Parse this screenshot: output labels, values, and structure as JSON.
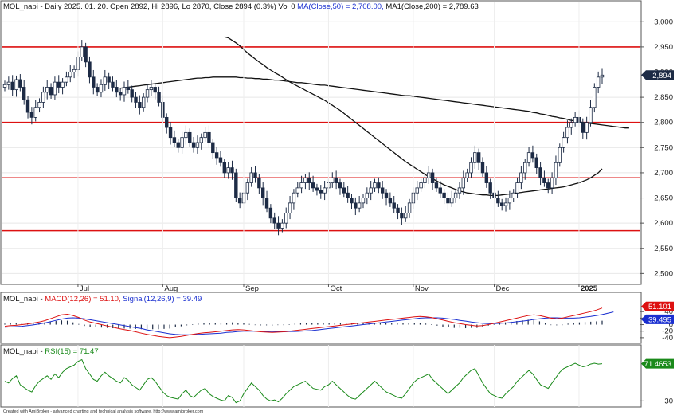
{
  "panels": {
    "price": {
      "title_prefix": "MOL_napi - Daily 2025. 01. 20. Open 2892, Hi 2896, Lo 2870, Close 2894 (0.3%) Vol 0",
      "ma50_label": "MA(Close,50) = 2,708.00,",
      "ma200_label": "MA1(Close,200) = 2,789.63",
      "last_badge": "2,894"
    },
    "macd": {
      "prefix": "MOL_napi - ",
      "macd_label": "MACD(12,26) = 51.10,",
      "signal_label": "Signal(12,26,9) = 39.49",
      "macd_badge": "51.101",
      "signal_badge": "39.495"
    },
    "rsi": {
      "prefix": "MOL_napi - ",
      "rsi_label": "RSI(15) = 71.47",
      "rsi_badge": "71.4653"
    }
  },
  "footer": "Created with AmiBroker - advanced charting and technical analysis software. http://www.amibroker.com",
  "colors": {
    "candle": "#1d2b45",
    "ma50": "#111111",
    "hline": "#dd1111",
    "macd": "#dd1111",
    "signal": "#1a2fd0",
    "histogram": "#1d2b45",
    "rsi": "#1a8a1a",
    "badge_price": "#1d2b45",
    "badge_macd": "#dd1111",
    "badge_signal": "#1a2fd0",
    "badge_rsi": "#1a8a1a"
  },
  "chart_data": [
    {
      "type": "candlestick",
      "title": "MOL_napi - Daily 2025. 01. 20. Open 2892, Hi 2896, Lo 2870, Close 2894 (0.3%) Vol 0",
      "x_tick_labels": [
        "Jul",
        "Aug",
        "Sep",
        "Oct",
        "Nov",
        "Dec",
        "2025"
      ],
      "x_tick_bar_index": [
        19,
        41,
        62,
        84,
        106,
        127,
        149
      ],
      "y_ticks": [
        2500,
        2550,
        2600,
        2650,
        2700,
        2750,
        2800,
        2850,
        2900,
        2950,
        3000
      ],
      "y_tick_labels": [
        "2,500",
        "2,550",
        "2,600",
        "2,650",
        "2,700",
        "2,750",
        "2,800",
        "2,850",
        "2,900",
        "2,950",
        "3,000"
      ],
      "ylim": [
        2480,
        3040
      ],
      "horizontal_levels": [
        2950,
        2800,
        2690,
        2585
      ],
      "closes": [
        2875,
        2880,
        2865,
        2885,
        2870,
        2845,
        2820,
        2810,
        2830,
        2840,
        2860,
        2870,
        2855,
        2880,
        2870,
        2880,
        2890,
        2900,
        2905,
        2930,
        2950,
        2920,
        2890,
        2870,
        2860,
        2875,
        2890,
        2880,
        2870,
        2860,
        2855,
        2870,
        2865,
        2850,
        2840,
        2830,
        2850,
        2865,
        2870,
        2860,
        2840,
        2810,
        2790,
        2770,
        2760,
        2750,
        2770,
        2780,
        2760,
        2750,
        2760,
        2770,
        2780,
        2760,
        2740,
        2730,
        2720,
        2700,
        2710,
        2700,
        2650,
        2640,
        2660,
        2680,
        2700,
        2690,
        2670,
        2650,
        2630,
        2610,
        2600,
        2590,
        2600,
        2620,
        2640,
        2660,
        2670,
        2680,
        2690,
        2680,
        2670,
        2665,
        2660,
        2670,
        2680,
        2690,
        2680,
        2670,
        2660,
        2650,
        2640,
        2630,
        2640,
        2650,
        2660,
        2670,
        2680,
        2670,
        2660,
        2650,
        2640,
        2630,
        2620,
        2610,
        2620,
        2640,
        2660,
        2670,
        2680,
        2690,
        2700,
        2680,
        2670,
        2660,
        2650,
        2640,
        2650,
        2660,
        2670,
        2690,
        2700,
        2720,
        2740,
        2720,
        2700,
        2680,
        2660,
        2650,
        2640,
        2635,
        2640,
        2650,
        2660,
        2680,
        2700,
        2720,
        2740,
        2730,
        2710,
        2690,
        2680,
        2670,
        2690,
        2720,
        2750,
        2770,
        2790,
        2800,
        2810,
        2800,
        2780,
        2800,
        2830,
        2870,
        2890,
        2894
      ],
      "ma200": [
        2868,
        2869,
        2870,
        2871,
        2872,
        2873,
        2874,
        2875,
        2876,
        2877,
        2878,
        2879,
        2880,
        2881,
        2882,
        2883,
        2884,
        2885,
        2886,
        2887,
        2888,
        2888,
        2889,
        2889,
        2890,
        2890,
        2890,
        2890,
        2890,
        2890,
        2890,
        2889,
        2889,
        2888,
        2888,
        2887,
        2887,
        2886,
        2886,
        2885,
        2884,
        2884,
        2883,
        2882,
        2881,
        2880,
        2879,
        2879,
        2878,
        2877,
        2876,
        2875,
        2874,
        2874,
        2873,
        2872,
        2871,
        2870,
        2869,
        2868,
        2867,
        2866,
        2865,
        2864,
        2863,
        2862,
        2861,
        2860,
        2859,
        2858,
        2857,
        2856,
        2855,
        2854,
        2853,
        2853,
        2852,
        2851,
        2850,
        2849,
        2848,
        2847,
        2846,
        2845,
        2844,
        2843,
        2842,
        2841,
        2840,
        2839,
        2838,
        2837,
        2836,
        2835,
        2834,
        2833,
        2832,
        2831,
        2830,
        2829,
        2828,
        2827,
        2826,
        2825,
        2824,
        2823,
        2822,
        2820,
        2819,
        2817,
        2816,
        2814,
        2812,
        2811,
        2809,
        2808,
        2806,
        2804,
        2803,
        2801,
        2800,
        2799,
        2798,
        2797,
        2796,
        2795,
        2794,
        2793,
        2792,
        2791,
        2790,
        2789,
        2789
      ],
      "ma200_start_bar": 30,
      "ma50": [
        2970,
        2968,
        2963,
        2958,
        2952,
        2945,
        2938,
        2932,
        2926,
        2920,
        2915,
        2909,
        2904,
        2899,
        2895,
        2890,
        2885,
        2880,
        2876,
        2872,
        2868,
        2864,
        2860,
        2856,
        2852,
        2848,
        2844,
        2839,
        2834,
        2829,
        2824,
        2818,
        2812,
        2806,
        2800,
        2794,
        2788,
        2782,
        2776,
        2770,
        2764,
        2758,
        2752,
        2746,
        2740,
        2734,
        2728,
        2722,
        2717,
        2712,
        2707,
        2702,
        2697,
        2692,
        2688,
        2684,
        2680,
        2676,
        2673,
        2670,
        2667,
        2664,
        2662,
        2660,
        2659,
        2658,
        2657,
        2656,
        2656,
        2655,
        2655,
        2655,
        2656,
        2657,
        2658,
        2659,
        2660,
        2661,
        2662,
        2663,
        2664,
        2665,
        2666,
        2667,
        2668,
        2669,
        2670,
        2671,
        2672,
        2674,
        2676,
        2678,
        2680,
        2683,
        2686,
        2690,
        2695,
        2700,
        2708
      ]
    },
    {
      "type": "line",
      "title": "MACD(12,26) = 51.10, Signal(12,26,9) = 39.49",
      "y_ticks": [
        40,
        20,
        0,
        -20,
        -40
      ],
      "ylim": [
        -55,
        65
      ],
      "series": [
        {
          "name": "MACD(12,26)",
          "values": [
            -5,
            -3,
            -2,
            0,
            2,
            5,
            8,
            12,
            18,
            24,
            30,
            32,
            28,
            22,
            14,
            8,
            4,
            0,
            -4,
            -8,
            -12,
            -15,
            -18,
            -22,
            -26,
            -30,
            -33,
            -36,
            -38,
            -40,
            -38,
            -36,
            -33,
            -30,
            -27,
            -25,
            -24,
            -22,
            -20,
            -18,
            -16,
            -15,
            -16,
            -18,
            -20,
            -22,
            -23,
            -24,
            -23,
            -22,
            -20,
            -18,
            -16,
            -14,
            -12,
            -10,
            -8,
            -6,
            -4,
            -2,
            0,
            2,
            4,
            6,
            8,
            10,
            12,
            14,
            16,
            18,
            20,
            22,
            24,
            25,
            24,
            22,
            18,
            14,
            10,
            6,
            3,
            0,
            -2,
            -4,
            -3,
            0,
            4,
            8,
            12,
            16,
            20,
            24,
            28,
            30,
            28,
            24,
            20,
            18,
            20,
            24,
            28,
            32,
            36,
            40,
            45,
            51
          ]
        },
        {
          "name": "Signal(12,26,9)",
          "values": [
            -8,
            -7,
            -6,
            -5,
            -3,
            -1,
            2,
            5,
            9,
            13,
            17,
            20,
            21,
            20,
            18,
            15,
            12,
            9,
            6,
            3,
            0,
            -3,
            -6,
            -9,
            -12,
            -16,
            -19,
            -22,
            -25,
            -28,
            -30,
            -31,
            -31,
            -31,
            -30,
            -29,
            -28,
            -27,
            -26,
            -24,
            -23,
            -21,
            -20,
            -20,
            -20,
            -20,
            -21,
            -21,
            -22,
            -22,
            -21,
            -21,
            -20,
            -19,
            -18,
            -16,
            -14,
            -12,
            -10,
            -8,
            -6,
            -4,
            -2,
            0,
            2,
            4,
            6,
            8,
            10,
            12,
            14,
            16,
            18,
            20,
            21,
            21,
            21,
            20,
            18,
            16,
            13,
            11,
            8,
            6,
            4,
            3,
            3,
            4,
            5,
            7,
            9,
            11,
            13,
            16,
            18,
            20,
            21,
            21,
            20,
            20,
            20,
            21,
            23,
            25,
            28,
            31,
            35,
            39
          ]
        },
        {
          "name": "Histogram",
          "values": [
            3,
            4,
            4,
            5,
            5,
            6,
            6,
            7,
            9,
            11,
            13,
            12,
            7,
            2,
            -4,
            -7,
            -8,
            -9,
            -10,
            -11,
            -12,
            -12,
            -12,
            -13,
            -14,
            -14,
            -14,
            -14,
            -13,
            -12,
            -8,
            -5,
            -2,
            1,
            3,
            4,
            4,
            5,
            6,
            6,
            7,
            6,
            4,
            2,
            0,
            -2,
            -2,
            -3,
            -1,
            0,
            1,
            3,
            4,
            5,
            6,
            6,
            6,
            6,
            6,
            6,
            6,
            6,
            6,
            6,
            6,
            6,
            6,
            6,
            6,
            6,
            6,
            6,
            6,
            5,
            3,
            1,
            -3,
            -6,
            -8,
            -10,
            -10,
            -11,
            -10,
            -10,
            -7,
            -3,
            1,
            4,
            7,
            9,
            11,
            13,
            15,
            14,
            10,
            4,
            -1,
            -2,
            0,
            3,
            5,
            7,
            8,
            9,
            10,
            12
          ]
        }
      ]
    },
    {
      "type": "line",
      "title": "RSI(15) = 71.47",
      "y_ticks": [
        30
      ],
      "ylim": [
        25,
        80
      ],
      "series": [
        {
          "name": "RSI(15)",
          "values": [
            52,
            50,
            55,
            58,
            48,
            45,
            42,
            40,
            47,
            52,
            55,
            58,
            54,
            60,
            56,
            62,
            66,
            68,
            70,
            74,
            76,
            66,
            60,
            54,
            52,
            58,
            62,
            58,
            55,
            52,
            50,
            56,
            53,
            48,
            45,
            42,
            48,
            54,
            56,
            52,
            46,
            40,
            36,
            34,
            33,
            32,
            38,
            42,
            36,
            34,
            38,
            42,
            44,
            38,
            35,
            33,
            31,
            30,
            36,
            34,
            28,
            30,
            38,
            44,
            50,
            46,
            42,
            36,
            32,
            30,
            31,
            29,
            33,
            38,
            42,
            46,
            48,
            50,
            52,
            48,
            44,
            43,
            42,
            46,
            48,
            52,
            48,
            44,
            40,
            36,
            33,
            32,
            36,
            40,
            44,
            48,
            52,
            48,
            44,
            40,
            38,
            36,
            34,
            33,
            38,
            44,
            50,
            54,
            56,
            58,
            60,
            54,
            50,
            46,
            42,
            38,
            42,
            46,
            50,
            56,
            60,
            64,
            66,
            58,
            50,
            44,
            38,
            36,
            34,
            33,
            38,
            42,
            46,
            52,
            56,
            60,
            64,
            60,
            54,
            48,
            46,
            44,
            50,
            56,
            62,
            66,
            68,
            70,
            72,
            70,
            68,
            69,
            71,
            72,
            71,
            71.47
          ]
        }
      ]
    }
  ]
}
